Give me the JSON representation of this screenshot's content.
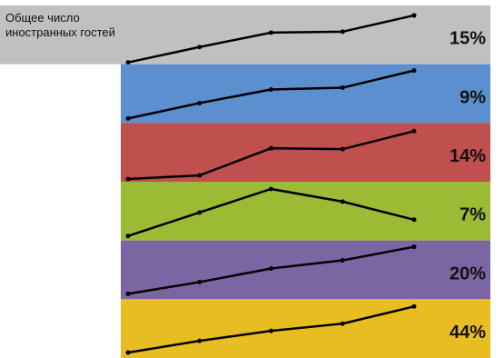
{
  "chart_data": {
    "type": "line",
    "categories": [
      null,
      null,
      null,
      null,
      null
    ],
    "ylim": [
      0,
      65
    ],
    "series": [
      {
        "name": "Общее число иностранных гостей",
        "color": "#c0c0c0",
        "values": [
          2,
          19,
          35,
          36,
          54
        ],
        "total": 15,
        "total_label": "15%"
      },
      {
        "color": "#5b8fcf",
        "values": [
          5,
          22,
          37,
          39,
          58
        ],
        "total": 9,
        "total_label": "9%"
      },
      {
        "color": "#c0504d",
        "values": [
          3,
          7,
          37,
          36,
          56
        ],
        "total": 14,
        "total_label": "14%"
      },
      {
        "color": "#9bbb35",
        "values": [
          5,
          31,
          57,
          43,
          23
        ],
        "total": 7,
        "total_label": "7%"
      },
      {
        "color": "#7b66a3",
        "values": [
          6,
          19,
          34,
          43,
          58
        ],
        "total": 20,
        "total_label": "20%"
      },
      {
        "color": "#e8bd22",
        "values": [
          6,
          19,
          30,
          38,
          57
        ],
        "total": 44,
        "total_label": "44%"
      }
    ]
  }
}
